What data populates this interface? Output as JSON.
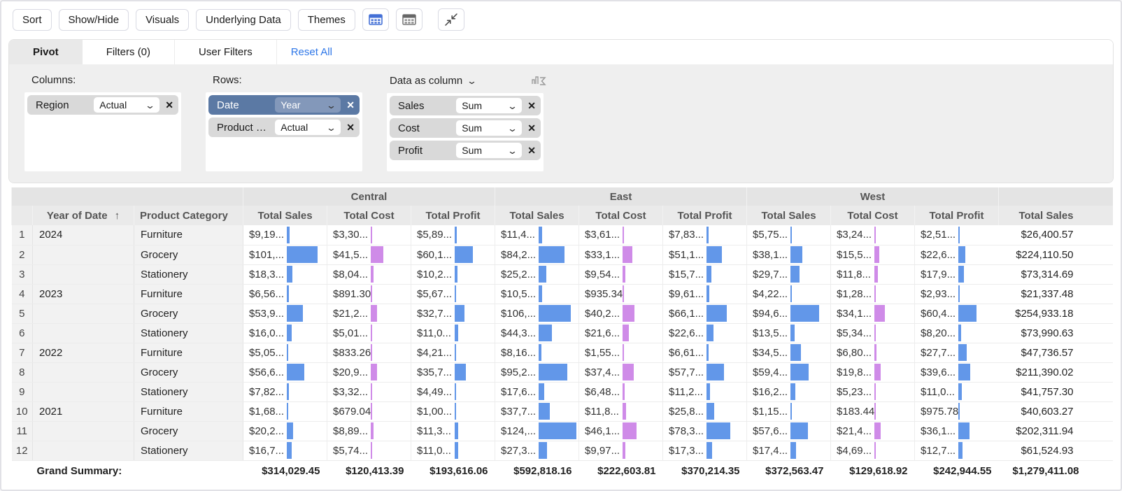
{
  "toolbar": {
    "buttons": [
      "Sort",
      "Show/Hide",
      "Visuals",
      "Underlying Data",
      "Themes"
    ],
    "icons": [
      "pivot-grid-blue-icon",
      "pivot-grid-flat-icon",
      "collapse-columns-icon"
    ]
  },
  "tabs": {
    "items": [
      {
        "label": "Pivot",
        "active": true
      },
      {
        "label": "Filters  (0)",
        "active": false
      },
      {
        "label": "User Filters",
        "active": false
      }
    ],
    "reset_all": "Reset All"
  },
  "pivot_config": {
    "columns": {
      "label": "Columns:",
      "fields": [
        {
          "name": "Region",
          "agg": "Actual",
          "highlight": false
        }
      ]
    },
    "rows": {
      "label": "Rows:",
      "fields": [
        {
          "name": "Date",
          "agg": "Year",
          "highlight": true
        },
        {
          "name": "Product Cat...",
          "agg": "Actual",
          "highlight": false
        }
      ]
    },
    "data": {
      "label": "Data as column",
      "icon": "aggregate-sigma-icon",
      "fields": [
        {
          "name": "Sales",
          "agg": "Sum",
          "highlight": false
        },
        {
          "name": "Cost",
          "agg": "Sum",
          "highlight": false
        },
        {
          "name": "Profit",
          "agg": "Sum",
          "highlight": false
        }
      ]
    }
  },
  "table": {
    "groups": [
      {
        "name": "Central"
      },
      {
        "name": "East"
      },
      {
        "name": "West"
      }
    ],
    "measure_headers": [
      "Total Sales",
      "Total Cost",
      "Total Profit"
    ],
    "measure_kinds": [
      "sales",
      "cost",
      "profit"
    ],
    "row_header_year": "Year of Date",
    "sort_indicator": "↑",
    "row_header_category": "Product Category",
    "grand_col_header": "Total Sales",
    "bar_colors": {
      "sales": "#6297e9",
      "cost": "#cf8be8",
      "profit": "#6297e9"
    },
    "rows": [
      {
        "num": "1",
        "year": "2024",
        "category": "Furniture",
        "cells": [
          {
            "t": "$9,19...",
            "b": 0.074
          },
          {
            "t": "$3,30...",
            "b": 0.027
          },
          {
            "t": "$5,89...",
            "b": 0.048
          },
          {
            "t": "$11,4...",
            "b": 0.092
          },
          {
            "t": "$3,61...",
            "b": 0.029
          },
          {
            "t": "$7,83...",
            "b": 0.063
          },
          {
            "t": "$5,75...",
            "b": 0.046
          },
          {
            "t": "$3,24...",
            "b": 0.026
          },
          {
            "t": "$2,51...",
            "b": 0.02
          }
        ],
        "total": "$26,400.57"
      },
      {
        "num": "2",
        "year": "",
        "category": "Grocery",
        "cells": [
          {
            "t": "$101,...",
            "b": 0.82
          },
          {
            "t": "$41,5...",
            "b": 0.335
          },
          {
            "t": "$60,1...",
            "b": 0.485
          },
          {
            "t": "$84,2...",
            "b": 0.68
          },
          {
            "t": "$33,1...",
            "b": 0.267
          },
          {
            "t": "$51,1...",
            "b": 0.412
          },
          {
            "t": "$38,1...",
            "b": 0.307
          },
          {
            "t": "$15,5...",
            "b": 0.125
          },
          {
            "t": "$22,6...",
            "b": 0.182
          }
        ],
        "total": "$224,110.50"
      },
      {
        "num": "3",
        "year": "",
        "category": "Stationery",
        "cells": [
          {
            "t": "$18,3...",
            "b": 0.148
          },
          {
            "t": "$8,04...",
            "b": 0.065
          },
          {
            "t": "$10,2...",
            "b": 0.082
          },
          {
            "t": "$25,2...",
            "b": 0.203
          },
          {
            "t": "$9,54...",
            "b": 0.077
          },
          {
            "t": "$15,7...",
            "b": 0.127
          },
          {
            "t": "$29,7...",
            "b": 0.24
          },
          {
            "t": "$11,8...",
            "b": 0.095
          },
          {
            "t": "$17,9...",
            "b": 0.144
          }
        ],
        "total": "$73,314.69"
      },
      {
        "num": "4",
        "year": "2023",
        "category": "Furniture",
        "cells": [
          {
            "t": "$6,56...",
            "b": 0.053
          },
          {
            "t": "$891.30",
            "b": 0.007
          },
          {
            "t": "$5,67...",
            "b": 0.046
          },
          {
            "t": "$10,5...",
            "b": 0.085
          },
          {
            "t": "$935.34",
            "b": 0.008
          },
          {
            "t": "$9,61...",
            "b": 0.078
          },
          {
            "t": "$4,22...",
            "b": 0.034
          },
          {
            "t": "$1,28...",
            "b": 0.01
          },
          {
            "t": "$2,93...",
            "b": 0.024
          }
        ],
        "total": "$21,337.48"
      },
      {
        "num": "5",
        "year": "",
        "category": "Grocery",
        "cells": [
          {
            "t": "$53,9...",
            "b": 0.435
          },
          {
            "t": "$21,2...",
            "b": 0.171
          },
          {
            "t": "$32,7...",
            "b": 0.264
          },
          {
            "t": "$106,...",
            "b": 0.855
          },
          {
            "t": "$40,2...",
            "b": 0.324
          },
          {
            "t": "$66,1...",
            "b": 0.533
          },
          {
            "t": "$94,6...",
            "b": 0.763
          },
          {
            "t": "$34,1...",
            "b": 0.275
          },
          {
            "t": "$60,4...",
            "b": 0.487
          }
        ],
        "total": "$254,933.18"
      },
      {
        "num": "6",
        "year": "",
        "category": "Stationery",
        "cells": [
          {
            "t": "$16,0...",
            "b": 0.129
          },
          {
            "t": "$5,01...",
            "b": 0.04
          },
          {
            "t": "$11,0...",
            "b": 0.089
          },
          {
            "t": "$44,3...",
            "b": 0.357
          },
          {
            "t": "$21,6...",
            "b": 0.174
          },
          {
            "t": "$22,6...",
            "b": 0.182
          },
          {
            "t": "$13,5...",
            "b": 0.109
          },
          {
            "t": "$5,34...",
            "b": 0.043
          },
          {
            "t": "$8,20...",
            "b": 0.066
          }
        ],
        "total": "$73,990.63"
      },
      {
        "num": "7",
        "year": "2022",
        "category": "Furniture",
        "cells": [
          {
            "t": "$5,05...",
            "b": 0.041
          },
          {
            "t": "$833.26",
            "b": 0.007
          },
          {
            "t": "$4,21...",
            "b": 0.034
          },
          {
            "t": "$8,16...",
            "b": 0.066
          },
          {
            "t": "$1,55...",
            "b": 0.013
          },
          {
            "t": "$6,61...",
            "b": 0.053
          },
          {
            "t": "$34,5...",
            "b": 0.278
          },
          {
            "t": "$6,80...",
            "b": 0.055
          },
          {
            "t": "$27,7...",
            "b": 0.223
          }
        ],
        "total": "$47,736.57"
      },
      {
        "num": "8",
        "year": "",
        "category": "Grocery",
        "cells": [
          {
            "t": "$56,6...",
            "b": 0.456
          },
          {
            "t": "$20,9...",
            "b": 0.169
          },
          {
            "t": "$35,7...",
            "b": 0.288
          },
          {
            "t": "$95,2...",
            "b": 0.768
          },
          {
            "t": "$37,4...",
            "b": 0.302
          },
          {
            "t": "$57,7...",
            "b": 0.465
          },
          {
            "t": "$59,4...",
            "b": 0.479
          },
          {
            "t": "$19,8...",
            "b": 0.16
          },
          {
            "t": "$39,6...",
            "b": 0.319
          }
        ],
        "total": "$211,390.02"
      },
      {
        "num": "9",
        "year": "",
        "category": "Stationery",
        "cells": [
          {
            "t": "$7,82...",
            "b": 0.063
          },
          {
            "t": "$3,32...",
            "b": 0.027
          },
          {
            "t": "$4,49...",
            "b": 0.036
          },
          {
            "t": "$17,6...",
            "b": 0.142
          },
          {
            "t": "$6,48...",
            "b": 0.052
          },
          {
            "t": "$11,2...",
            "b": 0.09
          },
          {
            "t": "$16,2...",
            "b": 0.131
          },
          {
            "t": "$5,23...",
            "b": 0.042
          },
          {
            "t": "$11,0...",
            "b": 0.089
          }
        ],
        "total": "$41,757.30"
      },
      {
        "num": "10",
        "year": "2021",
        "category": "Furniture",
        "cells": [
          {
            "t": "$1,68...",
            "b": 0.014
          },
          {
            "t": "$679.04",
            "b": 0.005
          },
          {
            "t": "$1,00...",
            "b": 0.008
          },
          {
            "t": "$37,7...",
            "b": 0.304
          },
          {
            "t": "$11,8...",
            "b": 0.095
          },
          {
            "t": "$25,8...",
            "b": 0.208
          },
          {
            "t": "$1,15...",
            "b": 0.009
          },
          {
            "t": "$183.44",
            "b": 0.001
          },
          {
            "t": "$975.78",
            "b": 0.008
          }
        ],
        "total": "$40,603.27"
      },
      {
        "num": "11",
        "year": "",
        "category": "Grocery",
        "cells": [
          {
            "t": "$20,2...",
            "b": 0.163
          },
          {
            "t": "$8,89...",
            "b": 0.072
          },
          {
            "t": "$11,3...",
            "b": 0.091
          },
          {
            "t": "$124,...",
            "b": 1.0
          },
          {
            "t": "$46,1...",
            "b": 0.372
          },
          {
            "t": "$78,3...",
            "b": 0.631
          },
          {
            "t": "$57,6...",
            "b": 0.465
          },
          {
            "t": "$21,4...",
            "b": 0.173
          },
          {
            "t": "$36,1...",
            "b": 0.291
          }
        ],
        "total": "$202,311.94"
      },
      {
        "num": "12",
        "year": "",
        "category": "Stationery",
        "cells": [
          {
            "t": "$16,7...",
            "b": 0.135
          },
          {
            "t": "$5,74...",
            "b": 0.046
          },
          {
            "t": "$11,0...",
            "b": 0.089
          },
          {
            "t": "$27,3...",
            "b": 0.22
          },
          {
            "t": "$9,97...",
            "b": 0.08
          },
          {
            "t": "$17,3...",
            "b": 0.14
          },
          {
            "t": "$17,4...",
            "b": 0.14
          },
          {
            "t": "$4,69...",
            "b": 0.038
          },
          {
            "t": "$12,7...",
            "b": 0.102
          }
        ],
        "total": "$61,524.93"
      }
    ],
    "grand_summary": {
      "label": "Grand Summary:",
      "values": [
        "$314,029.45",
        "$120,413.39",
        "$193,616.06",
        "$592,818.16",
        "$222,603.81",
        "$370,214.35",
        "$372,563.47",
        "$129,618.92",
        "$242,944.55",
        "$1,279,411.08"
      ]
    }
  }
}
